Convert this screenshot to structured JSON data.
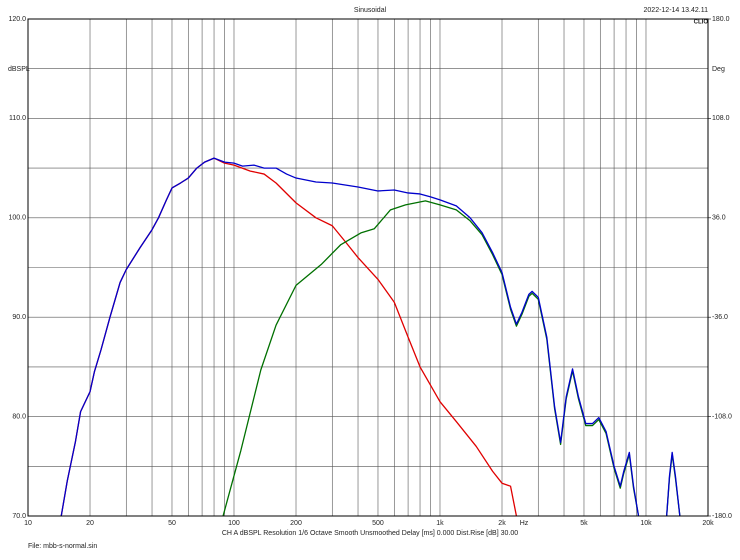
{
  "chart_data": {
    "type": "line",
    "title": "Sinusoidal",
    "timestamp": "2022-12-14 13.42.11",
    "logo": "CLIO",
    "ylabel": "dBSPL",
    "y2label": "Deg",
    "xlabel": "Hz",
    "settings": "CH A   dBSPL   Resolution 1/6 Octave   Smooth Unsmoothed   Delay [ms] 0.000   Dist.Rise [dB] 30.00",
    "file": "File: mbb-s-normal.sin",
    "xscale": "log",
    "xlim": [
      10,
      20000
    ],
    "ylim": [
      70,
      120
    ],
    "y2lim": [
      -180,
      180
    ],
    "grid": true,
    "xticks": [
      10,
      20,
      50,
      100,
      200,
      500,
      {
        "value": 1000,
        "label": "1k"
      },
      {
        "value": 2000,
        "label": "2k"
      },
      {
        "value": 5000,
        "label": "5k"
      },
      {
        "value": 10000,
        "label": "10k"
      },
      {
        "value": 20000,
        "label": "20k"
      }
    ],
    "xgrid": [
      30,
      40,
      60,
      70,
      80,
      90,
      300,
      400,
      600,
      700,
      800,
      900,
      3000,
      4000,
      6000,
      7000,
      8000,
      9000
    ],
    "yticks": [
      {
        "value": 70,
        "label": "70.0"
      },
      {
        "value": 80,
        "label": "80.0"
      },
      {
        "value": 90,
        "label": "90.0"
      },
      {
        "value": 100,
        "label": "100.0"
      },
      {
        "value": 110,
        "label": "110.0"
      },
      {
        "value": 120,
        "label": "120.0"
      }
    ],
    "ygrid": [
      75,
      85,
      95,
      105,
      115
    ],
    "y2ticks": [
      {
        "value": -180,
        "label": "-180.0"
      },
      {
        "value": -108,
        "label": "-108.0"
      },
      {
        "value": -36,
        "label": "-36.0"
      },
      {
        "value": 36,
        "label": "36.0"
      },
      {
        "value": 108,
        "label": "108.0"
      },
      {
        "value": 180,
        "label": "180.0"
      }
    ],
    "series": [
      {
        "color": "#e00000",
        "x": [
          14.5,
          15.5,
          17,
          18,
          20,
          21,
          22.6,
          25,
          28,
          30,
          35,
          40,
          43,
          47,
          50,
          55,
          60,
          66,
          72,
          80,
          90,
          100,
          120,
          140,
          160,
          200,
          250,
          300,
          350,
          400,
          500,
          600,
          700,
          800,
          1000,
          1200,
          1500,
          1800,
          2000,
          2200,
          2350
        ],
        "values": [
          70,
          73.5,
          77.5,
          80.5,
          82.5,
          84.5,
          86.7,
          90,
          93.5,
          94.8,
          97,
          98.8,
          100,
          101.8,
          103,
          103.5,
          104,
          105,
          105.6,
          106,
          105.5,
          105.3,
          104.7,
          104.4,
          103.5,
          101.5,
          100,
          99.2,
          97.5,
          96,
          93.8,
          91.5,
          88,
          85,
          81.5,
          79.5,
          77,
          74.5,
          73.3,
          73,
          70
        ]
      },
      {
        "color": "#007000",
        "x": [
          88.5,
          108,
          135,
          160,
          200,
          265,
          330,
          415,
          480,
          575,
          680,
          850,
          1000,
          1200,
          1400,
          1600,
          1800,
          2000,
          2200,
          2350,
          2500,
          2700,
          2800,
          3000,
          3300,
          3600,
          3850,
          4100,
          4400,
          4700,
          5100,
          5500,
          5900,
          6400,
          7000,
          7500,
          7800,
          8300,
          8700,
          9200,
          11000,
          12600,
          13000,
          13400,
          13900,
          14600
        ],
        "values": [
          70,
          76.6,
          84.7,
          89.2,
          93.2,
          95.3,
          97.3,
          98.5,
          98.9,
          100.8,
          101.3,
          101.7,
          101.3,
          100.8,
          99.7,
          98.3,
          96.3,
          94.3,
          90.8,
          89.1,
          90.3,
          92.1,
          92.4,
          91.8,
          87.8,
          80.8,
          77.2,
          81.8,
          84.6,
          81.8,
          79.1,
          79.1,
          79.7,
          78.3,
          74.8,
          72.8,
          74.3,
          76.2,
          72.8,
          70,
          null,
          70,
          73.8,
          76.2,
          73.8,
          70
        ]
      },
      {
        "color": "#0000cc",
        "x": [
          14.5,
          15.5,
          17,
          18,
          20,
          21,
          22.6,
          25,
          28,
          30,
          35,
          40,
          43,
          47,
          50,
          55,
          60,
          66,
          72,
          80,
          90,
          100,
          110,
          125,
          140,
          160,
          180,
          200,
          250,
          300,
          400,
          500,
          600,
          700,
          800,
          900,
          1000,
          1200,
          1400,
          1600,
          1800,
          2000,
          2200,
          2350,
          2500,
          2700,
          2800,
          3000,
          3300,
          3600,
          3850,
          4100,
          4400,
          4700,
          5100,
          5500,
          5900,
          6400,
          7000,
          7500,
          7800,
          8300,
          8700,
          9200,
          11000,
          12600,
          13000,
          13400,
          13900,
          14600
        ],
        "values": [
          70,
          73.5,
          77.5,
          80.5,
          82.5,
          84.5,
          86.7,
          90,
          93.5,
          94.8,
          97,
          98.8,
          100,
          101.8,
          103,
          103.5,
          104,
          105,
          105.6,
          106,
          105.6,
          105.5,
          105.2,
          105.3,
          105,
          105,
          104.4,
          104,
          103.6,
          103.5,
          103.1,
          102.7,
          102.8,
          102.5,
          102.4,
          102.1,
          101.8,
          101.2,
          100,
          98.5,
          96.5,
          94.5,
          91,
          89.3,
          90.5,
          92.3,
          92.6,
          92,
          88,
          81,
          77.4,
          82,
          84.8,
          82,
          79.3,
          79.3,
          79.9,
          78.5,
          75,
          73,
          74.5,
          76.4,
          73,
          70,
          null,
          70,
          74,
          76.4,
          74,
          70
        ]
      }
    ]
  }
}
